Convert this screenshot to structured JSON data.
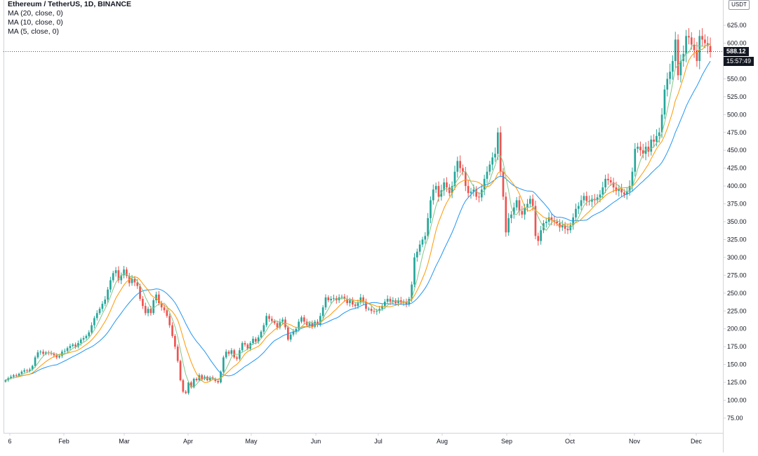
{
  "legend": {
    "title": "Ethereum / TetherUS, 1D, BINANCE",
    "ma20": "MA (20, close, 0)",
    "ma10": "MA (10, close, 0)",
    "ma5": "MA (5, close, 0)"
  },
  "currency": "USDT",
  "last_price_label": "588.12",
  "countdown": "15:57:49",
  "colors": {
    "up": "#26a69a",
    "down": "#ef5350",
    "ma20": "#2196f3",
    "ma10": "#ff9800",
    "ma5": "#81c784",
    "axis_text": "#131722"
  },
  "chart_data": {
    "type": "candlestick",
    "symbol": "ETH/USDT",
    "timeframe": "1D",
    "exchange": "BINANCE",
    "ylim": [
      50,
      650
    ],
    "y_ticks": [
      "75.00",
      "100.00",
      "125.00",
      "150.00",
      "175.00",
      "200.00",
      "225.00",
      "250.00",
      "275.00",
      "300.00",
      "325.00",
      "350.00",
      "375.00",
      "400.00",
      "425.00",
      "450.00",
      "475.00",
      "500.00",
      "525.00",
      "550.00",
      "575.00",
      "600.00",
      "625.00"
    ],
    "x_ticks": [
      "6",
      "Feb",
      "Mar",
      "Apr",
      "May",
      "Jun",
      "Jul",
      "Aug",
      "Sep",
      "Oct",
      "Nov",
      "Dec"
    ],
    "closes": [
      128,
      131,
      133,
      135,
      134,
      137,
      140,
      142,
      141,
      143,
      148,
      160,
      167,
      168,
      165,
      167,
      166,
      165,
      163,
      160,
      162,
      168,
      169,
      173,
      176,
      178,
      175,
      180,
      185,
      187,
      190,
      195,
      205,
      215,
      222,
      228,
      235,
      241,
      255,
      268,
      278,
      282,
      268,
      275,
      283,
      274,
      264,
      270,
      265,
      260,
      242,
      232,
      222,
      228,
      222,
      240,
      248,
      236,
      230,
      226,
      218,
      205,
      190,
      175,
      155,
      128,
      112,
      110,
      125,
      118,
      130,
      128,
      135,
      130,
      133,
      128,
      132,
      130,
      127,
      125,
      140,
      160,
      168,
      165,
      170,
      160,
      158,
      170,
      180,
      178,
      172,
      180,
      186,
      182,
      188,
      196,
      205,
      218,
      214,
      211,
      208,
      202,
      210,
      213,
      202,
      185,
      192,
      196,
      200,
      210,
      216,
      210,
      205,
      208,
      203,
      210,
      206,
      218,
      230,
      244,
      240,
      242,
      243,
      240,
      244,
      245,
      242,
      236,
      240,
      234,
      232,
      237,
      244,
      238,
      228,
      228,
      225,
      224,
      225,
      228,
      232,
      238,
      242,
      238,
      240,
      236,
      240,
      237,
      238,
      234,
      242,
      262,
      300,
      308,
      318,
      325,
      330,
      355,
      380,
      395,
      400,
      385,
      394,
      405,
      398,
      390,
      400,
      420,
      435,
      425,
      420,
      400,
      390,
      392,
      395,
      385,
      384,
      395,
      410,
      420,
      430,
      440,
      445,
      475,
      420,
      385,
      335,
      355,
      360,
      370,
      380,
      365,
      360,
      370,
      375,
      382,
      372,
      330,
      323,
      338,
      348,
      350,
      356,
      352,
      350,
      348,
      342,
      345,
      340,
      338,
      345,
      356,
      368,
      372,
      380,
      386,
      379,
      378,
      382,
      380,
      384,
      388,
      398,
      410,
      408,
      405,
      398,
      393,
      396,
      391,
      388,
      392,
      400,
      420,
      452,
      455,
      450,
      445,
      455,
      448,
      465,
      462,
      470,
      475,
      500,
      535,
      550,
      560,
      575,
      605,
      555,
      575,
      585,
      610,
      608,
      598,
      590,
      575,
      610,
      605,
      600,
      596,
      588
    ]
  }
}
